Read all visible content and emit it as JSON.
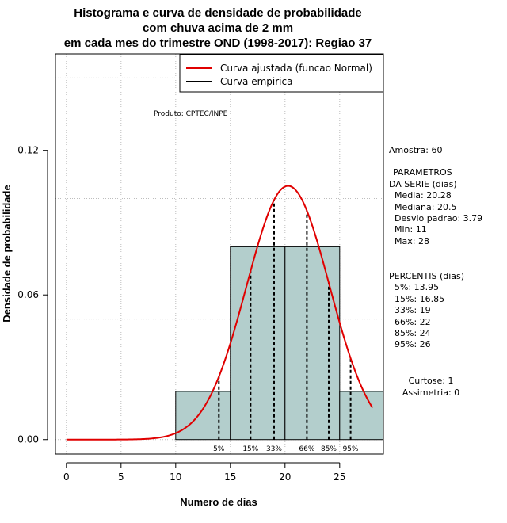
{
  "chart_data": {
    "type": "bar",
    "title": [
      "Histograma e curva de densidade de probabilidade",
      "com chuva acima de 2 mm",
      "em cada mes do trimestre OND (1998-2017): Regiao 37"
    ],
    "xlabel": "Numero de dias",
    "ylabel": "Densidade de probabilidade",
    "xlim": [
      -1,
      29
    ],
    "ylim": [
      -0.006,
      0.16
    ],
    "x_ticks": [
      "0",
      "5",
      "10",
      "15",
      "20",
      "25"
    ],
    "x_tick_values": [
      0,
      5,
      10,
      15,
      20,
      25
    ],
    "y_ticks": [
      "0.00",
      "0.06",
      "0.12"
    ],
    "y_tick_values": [
      0,
      0.06,
      0.12
    ],
    "grid": true,
    "bins": [
      {
        "start": 10,
        "end": 15,
        "density": 0.02
      },
      {
        "start": 15,
        "end": 20,
        "density": 0.08
      },
      {
        "start": 20,
        "end": 25,
        "density": 0.08
      },
      {
        "start": 25,
        "end": 30,
        "density": 0.02
      }
    ],
    "bar_color": "#b3cecc",
    "curve": {
      "mean": 20.28,
      "sd": 3.79,
      "x_from": 0,
      "x_to": 28,
      "color": "#e00000"
    },
    "percentile_lines": [
      {
        "label": "5%",
        "x": 13.95
      },
      {
        "label": "15%",
        "x": 16.85
      },
      {
        "label": "33%",
        "x": 19
      },
      {
        "label": "66%",
        "x": 22
      },
      {
        "label": "85%",
        "x": 24
      },
      {
        "label": "95%",
        "x": 26
      }
    ],
    "legend": [
      {
        "label": "Curva ajustada (funcao Normal)",
        "color": "#e00000"
      },
      {
        "label": "Curva empirica",
        "color": "#000000"
      }
    ],
    "legend_position": "top-right",
    "credit": "Produto: CPTEC/INPE"
  },
  "side_panel": {
    "amostra": "Amostra: 60",
    "parametros_title_1": "PARAMETROS",
    "parametros_title_2": "DA SERIE (dias)",
    "media": "Media: 20.28",
    "mediana": "Mediana: 20.5",
    "desvio": "Desvio padrao: 3.79",
    "min": "Min: 11",
    "max": "Max: 28",
    "percentis_title": "PERCENTIS (dias)",
    "p5": "5%: 13.95",
    "p15": "15%: 16.85",
    "p33": "33%: 19",
    "p66": "66%: 22",
    "p85": "85%: 24",
    "p95": "95%: 26",
    "curtose": "Curtose: 1",
    "assimetria": "Assimetria: 0"
  }
}
